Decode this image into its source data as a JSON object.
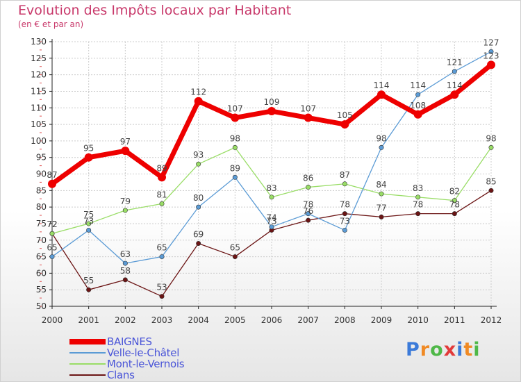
{
  "colors": {
    "title": "#c8386a",
    "grid": "#cccccc",
    "axis": "#222222",
    "legend_text": "#4a55d8"
  },
  "logo": {
    "letters": [
      "P",
      "r",
      "o",
      "x",
      "i",
      "t",
      "i"
    ],
    "colors": [
      "#3b7ad9",
      "#f08a24",
      "#4fb848",
      "#e23a3a",
      "#3b7ad9",
      "#f08a24",
      "#4fb848"
    ]
  },
  "chart_data": {
    "type": "line",
    "title": "Evolution des Impôts locaux par Habitant",
    "subtitle": "(en € et par an)",
    "xlabel": "",
    "ylabel": "",
    "ylim": [
      50,
      130
    ],
    "yticks": [
      50,
      55,
      60,
      65,
      70,
      75,
      80,
      85,
      90,
      95,
      100,
      105,
      110,
      115,
      120,
      125,
      130
    ],
    "grid": true,
    "legend_position": "bottom-left",
    "x": [
      "2000",
      "2001",
      "2002",
      "2003",
      "2004",
      "2005",
      "2006",
      "2007",
      "2008",
      "2009",
      "2010",
      "2011",
      "2012"
    ],
    "series": [
      {
        "name": "BAIGNES",
        "color": "#ee0000",
        "values": [
          87,
          95,
          97,
          89,
          112,
          107,
          109,
          107,
          105,
          114,
          108,
          114,
          123
        ]
      },
      {
        "name": "Velle-le-Châtel",
        "color": "#5b9bd5",
        "values": [
          65,
          73,
          63,
          65,
          80,
          89,
          74,
          78,
          73,
          98,
          114,
          121,
          127
        ]
      },
      {
        "name": "Mont-le-Vernois",
        "color": "#99dd66",
        "values": [
          72,
          75,
          79,
          81,
          93,
          98,
          83,
          86,
          87,
          84,
          83,
          82,
          98
        ]
      },
      {
        "name": "Clans",
        "color": "#6b1414",
        "values": [
          72,
          55,
          58,
          53,
          69,
          65,
          73,
          76,
          78,
          77,
          78,
          78,
          85
        ]
      }
    ]
  }
}
